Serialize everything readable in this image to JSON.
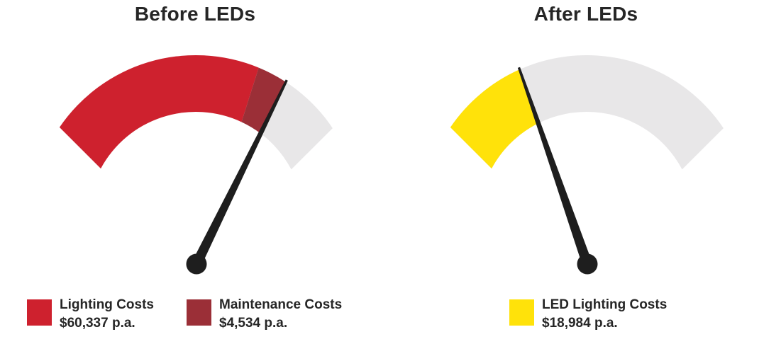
{
  "page": {
    "background": "#ffffff",
    "text_color": "#262626"
  },
  "chart_data": [
    {
      "type": "gauge",
      "title": "Before LEDs",
      "start_angle_deg": 135,
      "end_angle_deg": 45,
      "track_color": "#e8e7e8",
      "needle_color": "#1e1e1e",
      "needle_frac": 0.79,
      "segments": [
        {
          "label": "Lighting Costs",
          "value": 60337,
          "value_text": "$60,337 p.a.",
          "color": "#ce212e",
          "start_frac": 0.0,
          "end_frac": 0.695
        },
        {
          "label": "Maintenance Costs",
          "value": 4534,
          "value_text": "$4,534 p.a.",
          "color": "#9b2f37",
          "start_frac": 0.695,
          "end_frac": 0.79
        }
      ]
    },
    {
      "type": "gauge",
      "title": "After LEDs",
      "start_angle_deg": 135,
      "end_angle_deg": 45,
      "track_color": "#e8e7e8",
      "needle_color": "#1e1e1e",
      "needle_frac": 0.287,
      "segments": [
        {
          "label": "LED Lighting Costs",
          "value": 18984,
          "value_text": "$18,984 p.a.",
          "color": "#ffe20a",
          "start_frac": 0.0,
          "end_frac": 0.287
        }
      ]
    }
  ]
}
